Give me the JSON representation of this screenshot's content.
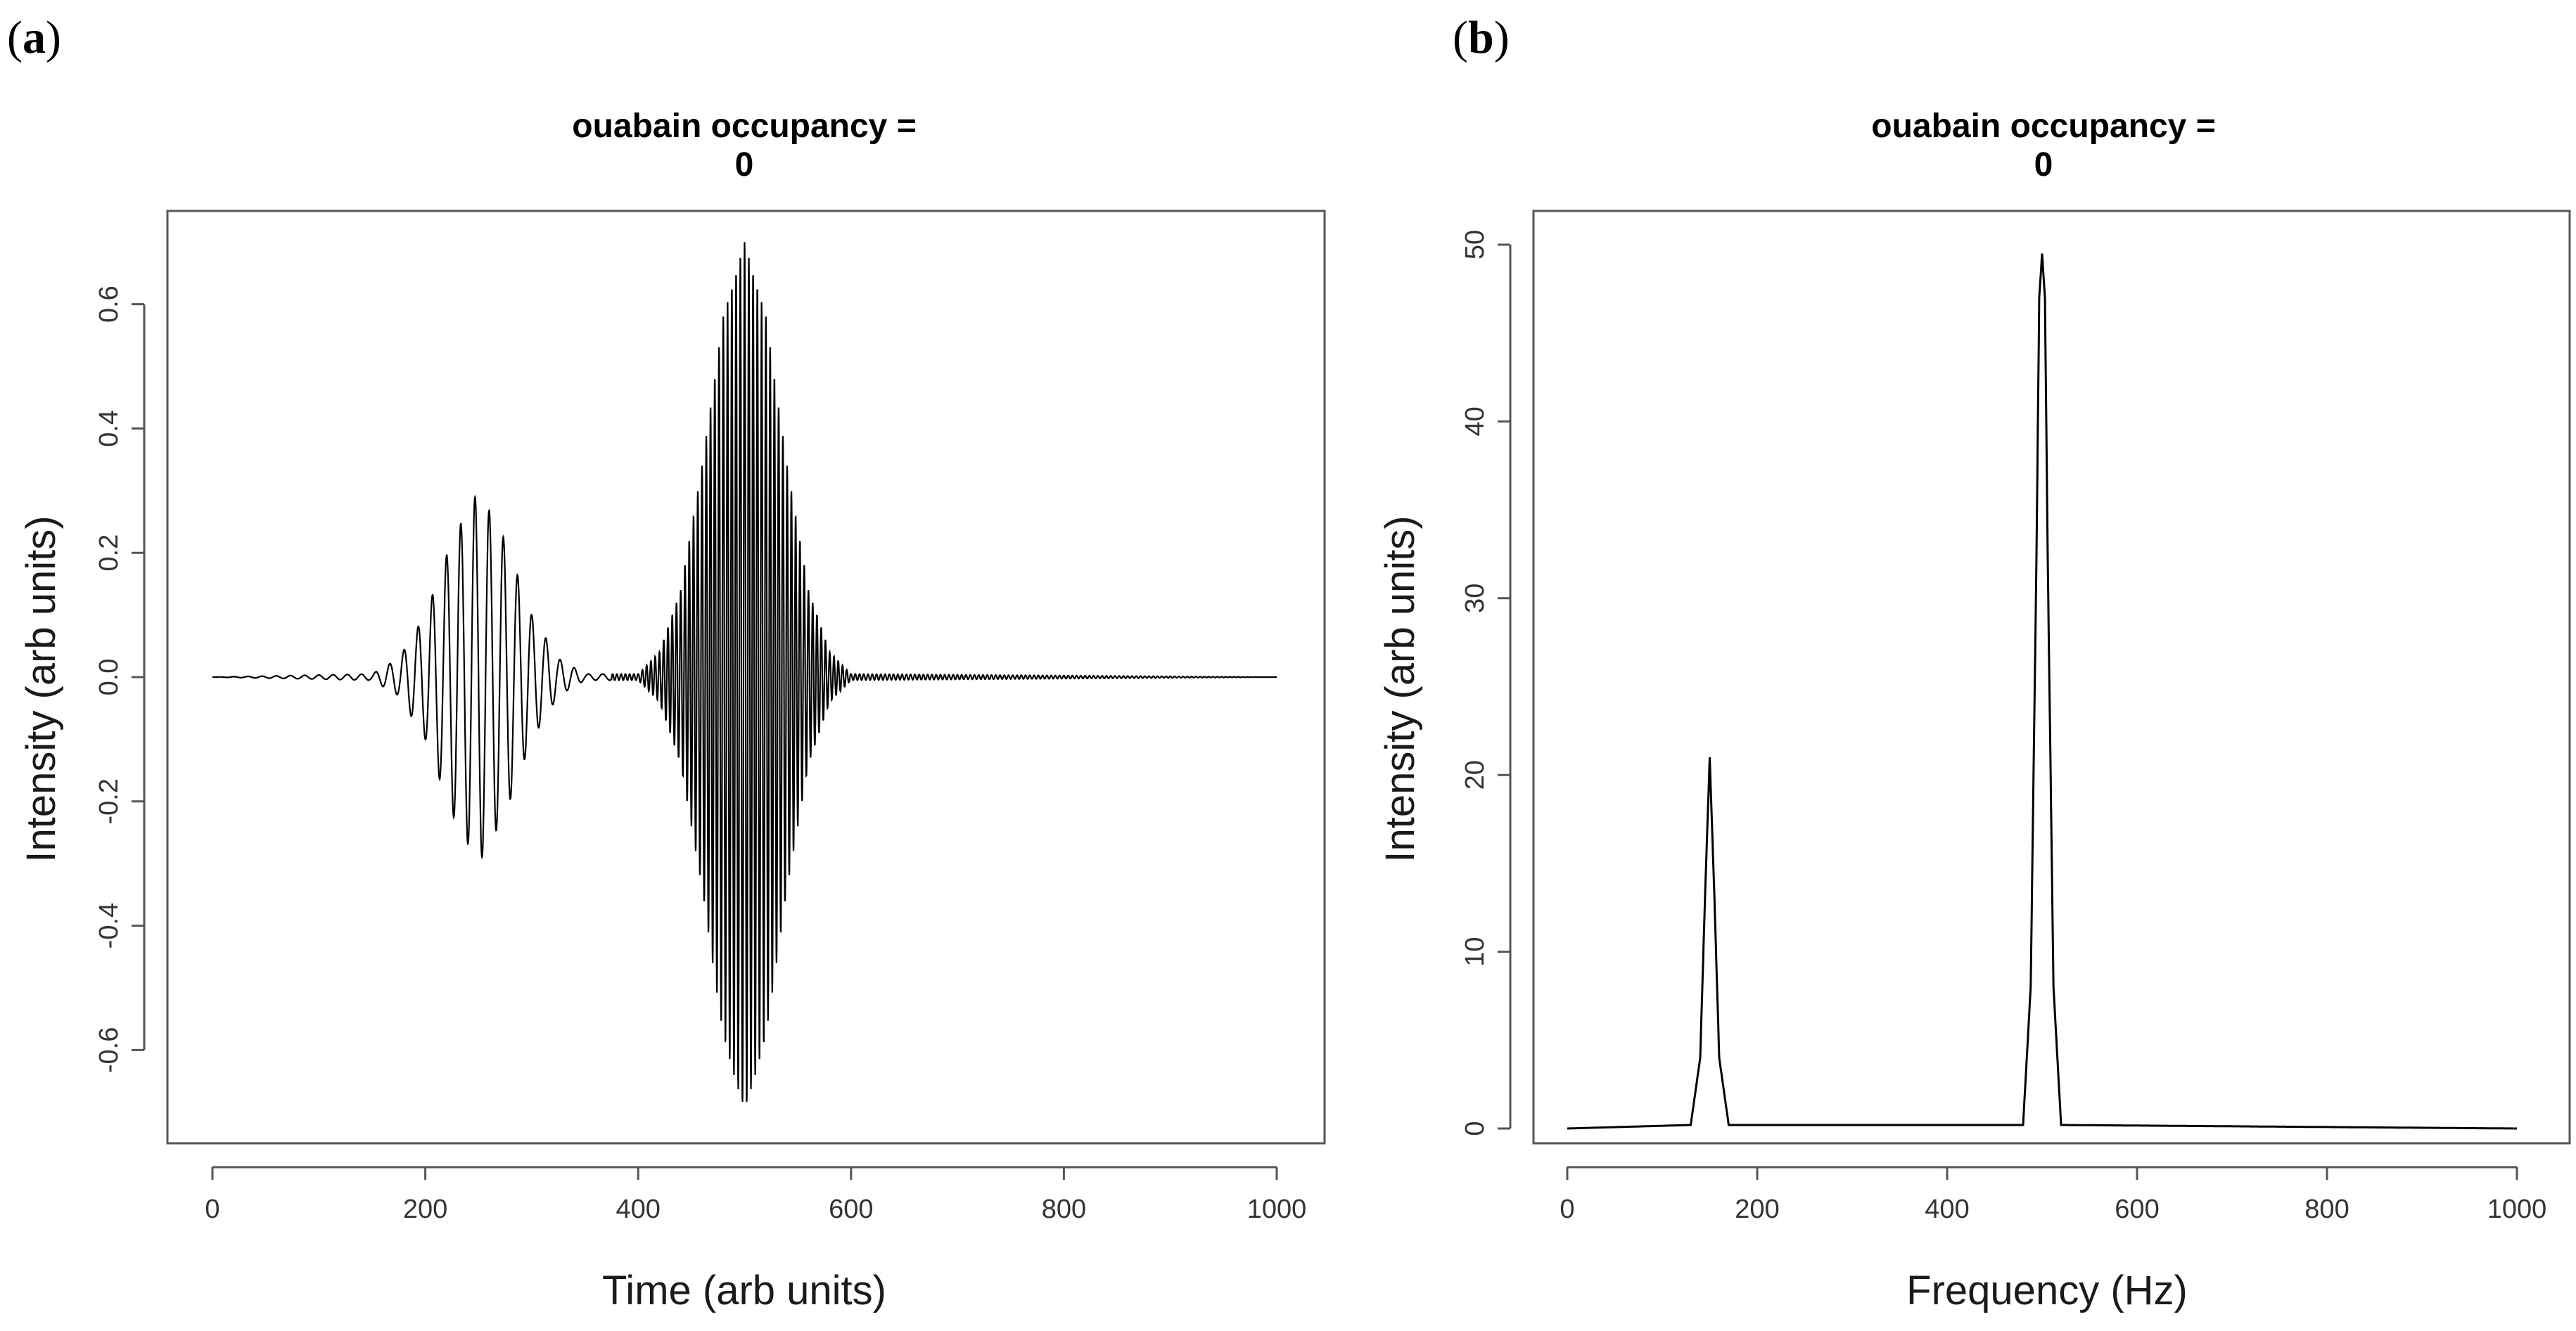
{
  "panels": [
    {
      "label_open": "(",
      "label_letter": "a",
      "label_close": ")",
      "title_line1": "ouabain occupancy =",
      "title_line2": "0",
      "xlabel": "Time (arb units)",
      "ylabel": "Intensity (arb units)",
      "x_ticks": [
        "0",
        "200",
        "400",
        "600",
        "800",
        "1000"
      ],
      "y_ticks": [
        "-0.6",
        "-0.4",
        "-0.2",
        "0.0",
        "0.2",
        "0.4",
        "0.6"
      ]
    },
    {
      "label_open": "(",
      "label_letter": "b",
      "label_close": ")",
      "title_line1": "ouabain occupancy =",
      "title_line2": "0",
      "xlabel": "Frequency (Hz)",
      "ylabel": "Intensity (arb units)",
      "x_ticks": [
        "0",
        "200",
        "400",
        "600",
        "800",
        "1000"
      ],
      "y_ticks": [
        "0",
        "10",
        "20",
        "30",
        "40",
        "50"
      ]
    }
  ],
  "chart_data": [
    {
      "type": "line",
      "title": "ouabain occupancy = 0",
      "xlabel": "Time (arb units)",
      "ylabel": "Intensity (arb units)",
      "xlim": [
        0,
        1000
      ],
      "ylim": [
        -0.75,
        0.75
      ],
      "grid": false,
      "series": [
        {
          "x": [
            0,
            150,
            175,
            200,
            225,
            250,
            275,
            300,
            325,
            350,
            400,
            420,
            440,
            460,
            480,
            500,
            520,
            540,
            560,
            580,
            600,
            1000
          ],
          "envelope": [
            0,
            0.005,
            0.03,
            0.1,
            0.22,
            0.3,
            0.22,
            0.1,
            0.03,
            0.005,
            0.005,
            0.04,
            0.14,
            0.34,
            0.58,
            0.7,
            0.58,
            0.34,
            0.14,
            0.04,
            0.005,
            0
          ]
        }
      ],
      "components": [
        {
          "center": 250,
          "amplitude": 0.3,
          "frequency_hz": 150
        },
        {
          "center": 500,
          "amplitude": 0.7,
          "frequency_hz": 500
        }
      ]
    },
    {
      "type": "line",
      "title": "ouabain occupancy = 0",
      "xlabel": "Frequency (Hz)",
      "ylabel": "Intensity (arb units)",
      "xlim": [
        0,
        1000
      ],
      "ylim": [
        0,
        52
      ],
      "grid": false,
      "series": [
        {
          "x": [
            0,
            130,
            140,
            145,
            150,
            155,
            160,
            170,
            480,
            488,
            494,
            497,
            500,
            503,
            506,
            512,
            520,
            1000
          ],
          "y": [
            0,
            0.2,
            4,
            13,
            21,
            13,
            4,
            0.2,
            0.2,
            8,
            32,
            47,
            49.5,
            47,
            32,
            8,
            0.2,
            0
          ]
        }
      ]
    }
  ]
}
